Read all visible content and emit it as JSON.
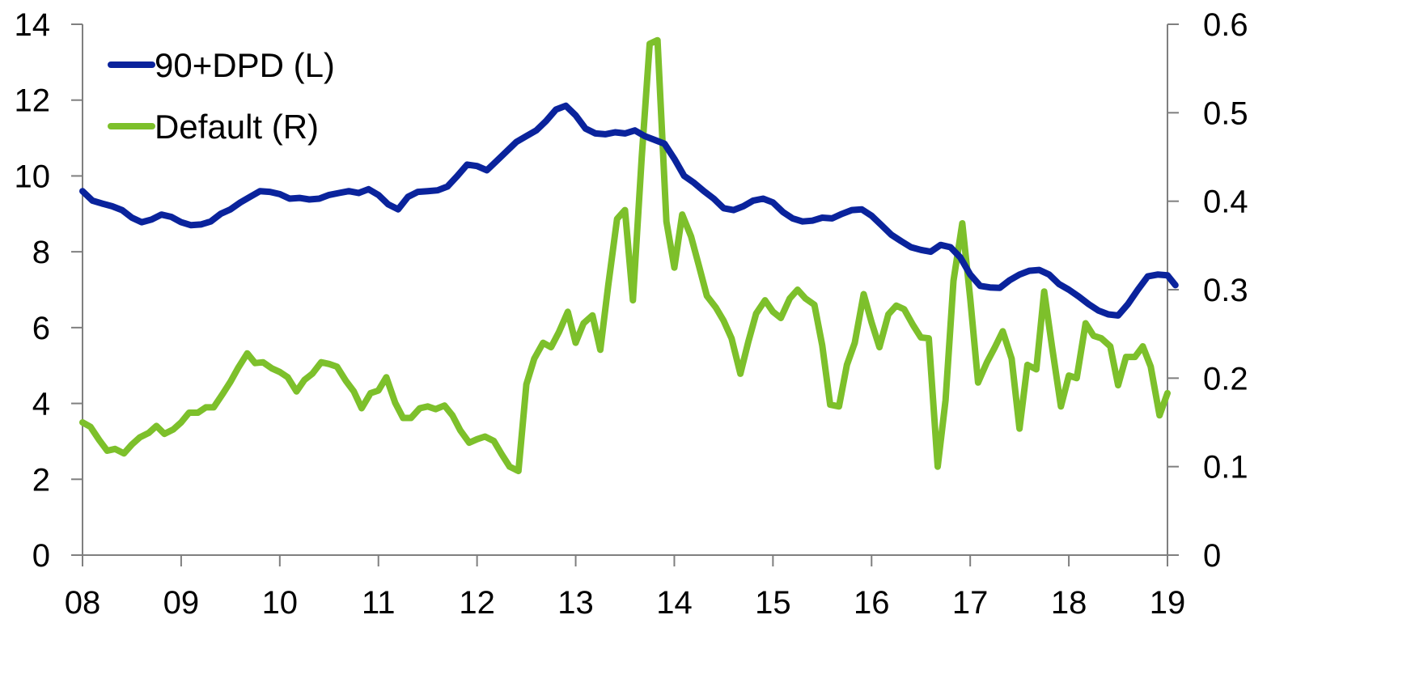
{
  "chart_data": {
    "type": "line",
    "title": "",
    "xlabel": "",
    "ylabel_left": "",
    "ylabel_right": "",
    "x_ticks": [
      "08",
      "09",
      "10",
      "11",
      "12",
      "13",
      "14",
      "15",
      "16",
      "17",
      "18",
      "19"
    ],
    "y_left_ticks": [
      "0",
      "2",
      "4",
      "6",
      "8",
      "10",
      "12",
      "14"
    ],
    "y_right_ticks": [
      "0",
      "0.1",
      "0.2",
      "0.3",
      "0.4",
      "0.5",
      "0.6"
    ],
    "xlim": [
      2008,
      2019
    ],
    "ylim_left": [
      0,
      14
    ],
    "ylim_right": [
      0,
      0.6
    ],
    "grid": false,
    "legend_position": "top-left",
    "series": [
      {
        "name": "90+DPD (L)",
        "axis": "left",
        "color": "#0a239c",
        "points": [
          [
            2008.0,
            9.6
          ],
          [
            2008.1,
            9.35
          ],
          [
            2008.2,
            9.27
          ],
          [
            2008.3,
            9.2
          ],
          [
            2008.4,
            9.1
          ],
          [
            2008.5,
            8.9
          ],
          [
            2008.6,
            8.78
          ],
          [
            2008.7,
            8.85
          ],
          [
            2008.8,
            8.98
          ],
          [
            2008.9,
            8.92
          ],
          [
            2009.0,
            8.78
          ],
          [
            2009.1,
            8.7
          ],
          [
            2009.2,
            8.72
          ],
          [
            2009.3,
            8.8
          ],
          [
            2009.4,
            9.0
          ],
          [
            2009.5,
            9.12
          ],
          [
            2009.6,
            9.3
          ],
          [
            2009.7,
            9.45
          ],
          [
            2009.8,
            9.6
          ],
          [
            2009.9,
            9.58
          ],
          [
            2010.0,
            9.52
          ],
          [
            2010.1,
            9.4
          ],
          [
            2010.2,
            9.42
          ],
          [
            2010.3,
            9.38
          ],
          [
            2010.4,
            9.4
          ],
          [
            2010.5,
            9.5
          ],
          [
            2010.6,
            9.55
          ],
          [
            2010.7,
            9.6
          ],
          [
            2010.8,
            9.55
          ],
          [
            2010.9,
            9.65
          ],
          [
            2011.0,
            9.5
          ],
          [
            2011.1,
            9.25
          ],
          [
            2011.2,
            9.12
          ],
          [
            2011.3,
            9.45
          ],
          [
            2011.4,
            9.58
          ],
          [
            2011.5,
            9.6
          ],
          [
            2011.6,
            9.62
          ],
          [
            2011.7,
            9.72
          ],
          [
            2011.8,
            10.0
          ],
          [
            2011.9,
            10.3
          ],
          [
            2012.0,
            10.26
          ],
          [
            2012.1,
            10.15
          ],
          [
            2012.2,
            10.4
          ],
          [
            2012.3,
            10.65
          ],
          [
            2012.4,
            10.9
          ],
          [
            2012.5,
            11.05
          ],
          [
            2012.6,
            11.2
          ],
          [
            2012.7,
            11.45
          ],
          [
            2012.8,
            11.75
          ],
          [
            2012.9,
            11.85
          ],
          [
            2013.0,
            11.6
          ],
          [
            2013.1,
            11.25
          ],
          [
            2013.2,
            11.12
          ],
          [
            2013.3,
            11.1
          ],
          [
            2013.4,
            11.15
          ],
          [
            2013.5,
            11.12
          ],
          [
            2013.6,
            11.2
          ],
          [
            2013.7,
            11.05
          ],
          [
            2013.8,
            10.95
          ],
          [
            2013.9,
            10.85
          ],
          [
            2014.0,
            10.45
          ],
          [
            2014.1,
            10.0
          ],
          [
            2014.2,
            9.82
          ],
          [
            2014.3,
            9.6
          ],
          [
            2014.4,
            9.4
          ],
          [
            2014.5,
            9.15
          ],
          [
            2014.6,
            9.1
          ],
          [
            2014.7,
            9.2
          ],
          [
            2014.8,
            9.35
          ],
          [
            2014.9,
            9.4
          ],
          [
            2015.0,
            9.3
          ],
          [
            2015.1,
            9.05
          ],
          [
            2015.2,
            8.88
          ],
          [
            2015.3,
            8.8
          ],
          [
            2015.4,
            8.82
          ],
          [
            2015.5,
            8.9
          ],
          [
            2015.6,
            8.88
          ],
          [
            2015.7,
            9.0
          ],
          [
            2015.8,
            9.1
          ],
          [
            2015.9,
            9.12
          ],
          [
            2016.0,
            8.95
          ],
          [
            2016.1,
            8.7
          ],
          [
            2016.2,
            8.45
          ],
          [
            2016.3,
            8.28
          ],
          [
            2016.4,
            8.12
          ],
          [
            2016.5,
            8.05
          ],
          [
            2016.6,
            8.0
          ],
          [
            2016.7,
            8.18
          ],
          [
            2016.8,
            8.12
          ],
          [
            2016.9,
            7.85
          ],
          [
            2017.0,
            7.4
          ],
          [
            2017.1,
            7.1
          ],
          [
            2017.2,
            7.06
          ],
          [
            2017.3,
            7.05
          ],
          [
            2017.4,
            7.25
          ],
          [
            2017.5,
            7.4
          ],
          [
            2017.6,
            7.5
          ],
          [
            2017.7,
            7.52
          ],
          [
            2017.8,
            7.4
          ],
          [
            2017.9,
            7.15
          ],
          [
            2018.0,
            7.0
          ],
          [
            2018.1,
            6.82
          ],
          [
            2018.2,
            6.62
          ],
          [
            2018.3,
            6.45
          ],
          [
            2018.4,
            6.35
          ],
          [
            2018.5,
            6.32
          ],
          [
            2018.6,
            6.62
          ],
          [
            2018.7,
            7.0
          ],
          [
            2018.8,
            7.35
          ],
          [
            2018.9,
            7.4
          ],
          [
            2019.0,
            7.38
          ],
          [
            2019.08,
            7.12
          ]
        ]
      },
      {
        "name": "Default (R)",
        "axis": "right",
        "color": "#7dc02b",
        "points": [
          [
            2008.0,
            0.15
          ],
          [
            2008.08,
            0.145
          ],
          [
            2008.17,
            0.13
          ],
          [
            2008.25,
            0.118
          ],
          [
            2008.33,
            0.12
          ],
          [
            2008.42,
            0.115
          ],
          [
            2008.5,
            0.125
          ],
          [
            2008.58,
            0.133
          ],
          [
            2008.67,
            0.138
          ],
          [
            2008.75,
            0.146
          ],
          [
            2008.83,
            0.137
          ],
          [
            2008.92,
            0.142
          ],
          [
            2009.0,
            0.15
          ],
          [
            2009.08,
            0.161
          ],
          [
            2009.17,
            0.161
          ],
          [
            2009.25,
            0.167
          ],
          [
            2009.33,
            0.167
          ],
          [
            2009.42,
            0.182
          ],
          [
            2009.5,
            0.196
          ],
          [
            2009.58,
            0.212
          ],
          [
            2009.67,
            0.228
          ],
          [
            2009.75,
            0.217
          ],
          [
            2009.83,
            0.218
          ],
          [
            2009.92,
            0.211
          ],
          [
            2010.0,
            0.207
          ],
          [
            2010.08,
            0.201
          ],
          [
            2010.17,
            0.185
          ],
          [
            2010.25,
            0.198
          ],
          [
            2010.33,
            0.205
          ],
          [
            2010.42,
            0.218
          ],
          [
            2010.5,
            0.216
          ],
          [
            2010.58,
            0.213
          ],
          [
            2010.67,
            0.197
          ],
          [
            2010.75,
            0.185
          ],
          [
            2010.83,
            0.166
          ],
          [
            2010.92,
            0.183
          ],
          [
            2011.0,
            0.186
          ],
          [
            2011.08,
            0.201
          ],
          [
            2011.17,
            0.172
          ],
          [
            2011.25,
            0.155
          ],
          [
            2011.33,
            0.155
          ],
          [
            2011.42,
            0.166
          ],
          [
            2011.5,
            0.168
          ],
          [
            2011.58,
            0.165
          ],
          [
            2011.67,
            0.169
          ],
          [
            2011.75,
            0.158
          ],
          [
            2011.83,
            0.141
          ],
          [
            2011.92,
            0.127
          ],
          [
            2012.0,
            0.131
          ],
          [
            2012.08,
            0.134
          ],
          [
            2012.17,
            0.129
          ],
          [
            2012.25,
            0.114
          ],
          [
            2012.33,
            0.1
          ],
          [
            2012.42,
            0.095
          ],
          [
            2012.5,
            0.193
          ],
          [
            2012.58,
            0.222
          ],
          [
            2012.67,
            0.24
          ],
          [
            2012.75,
            0.235
          ],
          [
            2012.83,
            0.252
          ],
          [
            2012.92,
            0.275
          ],
          [
            2013.0,
            0.24
          ],
          [
            2013.08,
            0.262
          ],
          [
            2013.17,
            0.271
          ],
          [
            2013.25,
            0.232
          ],
          [
            2013.33,
            0.305
          ],
          [
            2013.42,
            0.38
          ],
          [
            2013.5,
            0.39
          ],
          [
            2013.58,
            0.288
          ],
          [
            2013.67,
            0.45
          ],
          [
            2013.75,
            0.578
          ],
          [
            2013.83,
            0.582
          ],
          [
            2013.92,
            0.377
          ],
          [
            2014.0,
            0.325
          ],
          [
            2014.08,
            0.385
          ],
          [
            2014.17,
            0.36
          ],
          [
            2014.25,
            0.327
          ],
          [
            2014.33,
            0.293
          ],
          [
            2014.42,
            0.28
          ],
          [
            2014.5,
            0.265
          ],
          [
            2014.58,
            0.245
          ],
          [
            2014.67,
            0.205
          ],
          [
            2014.75,
            0.241
          ],
          [
            2014.83,
            0.273
          ],
          [
            2014.92,
            0.288
          ],
          [
            2015.0,
            0.275
          ],
          [
            2015.08,
            0.268
          ],
          [
            2015.17,
            0.29
          ],
          [
            2015.25,
            0.3
          ],
          [
            2015.33,
            0.29
          ],
          [
            2015.42,
            0.283
          ],
          [
            2015.5,
            0.237
          ],
          [
            2015.58,
            0.17
          ],
          [
            2015.67,
            0.168
          ],
          [
            2015.75,
            0.215
          ],
          [
            2015.83,
            0.24
          ],
          [
            2015.92,
            0.295
          ],
          [
            2016.0,
            0.263
          ],
          [
            2016.08,
            0.235
          ],
          [
            2016.17,
            0.272
          ],
          [
            2016.25,
            0.282
          ],
          [
            2016.33,
            0.278
          ],
          [
            2016.42,
            0.26
          ],
          [
            2016.5,
            0.246
          ],
          [
            2016.58,
            0.245
          ],
          [
            2016.67,
            0.1
          ],
          [
            2016.75,
            0.175
          ],
          [
            2016.83,
            0.31
          ],
          [
            2016.92,
            0.375
          ],
          [
            2017.0,
            0.29
          ],
          [
            2017.08,
            0.195
          ],
          [
            2017.17,
            0.218
          ],
          [
            2017.25,
            0.235
          ],
          [
            2017.33,
            0.253
          ],
          [
            2017.42,
            0.222
          ],
          [
            2017.5,
            0.143
          ],
          [
            2017.58,
            0.215
          ],
          [
            2017.67,
            0.21
          ],
          [
            2017.75,
            0.298
          ],
          [
            2017.83,
            0.235
          ],
          [
            2017.92,
            0.168
          ],
          [
            2018.0,
            0.203
          ],
          [
            2018.08,
            0.2
          ],
          [
            2018.17,
            0.262
          ],
          [
            2018.25,
            0.248
          ],
          [
            2018.33,
            0.245
          ],
          [
            2018.42,
            0.236
          ],
          [
            2018.5,
            0.192
          ],
          [
            2018.58,
            0.224
          ],
          [
            2018.67,
            0.224
          ],
          [
            2018.75,
            0.236
          ],
          [
            2018.83,
            0.213
          ],
          [
            2018.92,
            0.158
          ],
          [
            2019.0,
            0.183
          ]
        ]
      }
    ]
  }
}
